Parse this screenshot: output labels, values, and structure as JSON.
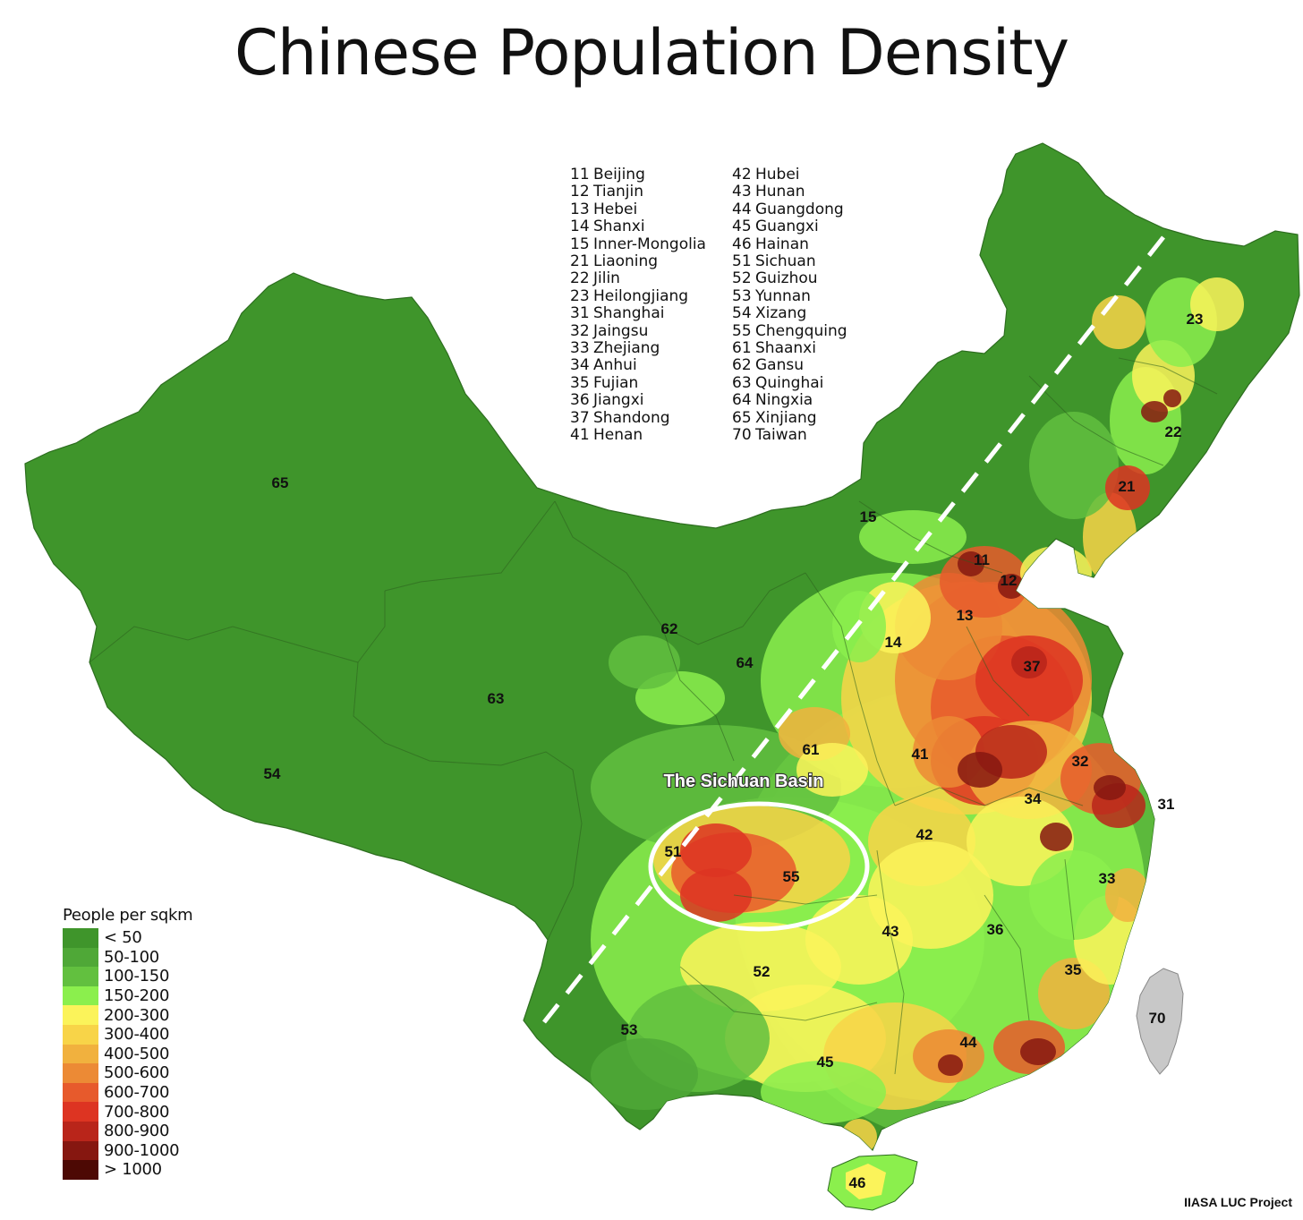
{
  "title": "Chinese Population Density",
  "province_key": {
    "left": [
      {
        "code": "11",
        "name": "Beijing"
      },
      {
        "code": "12",
        "name": "Tianjin"
      },
      {
        "code": "13",
        "name": "Hebei"
      },
      {
        "code": "14",
        "name": "Shanxi"
      },
      {
        "code": "15",
        "name": "Inner-Mongolia"
      },
      {
        "code": "21",
        "name": "Liaoning"
      },
      {
        "code": "22",
        "name": "Jilin"
      },
      {
        "code": "23",
        "name": "Heilongjiang"
      },
      {
        "code": "31",
        "name": "Shanghai"
      },
      {
        "code": "32",
        "name": "Jaingsu"
      },
      {
        "code": "33",
        "name": "Zhejiang"
      },
      {
        "code": "34",
        "name": "Anhui"
      },
      {
        "code": "35",
        "name": "Fujian"
      },
      {
        "code": "36",
        "name": "Jiangxi"
      },
      {
        "code": "37",
        "name": "Shandong"
      },
      {
        "code": "41",
        "name": "Henan"
      }
    ],
    "right": [
      {
        "code": "42",
        "name": "Hubei"
      },
      {
        "code": "43",
        "name": "Hunan"
      },
      {
        "code": "44",
        "name": "Guangdong"
      },
      {
        "code": "45",
        "name": "Guangxi"
      },
      {
        "code": "46",
        "name": "Hainan"
      },
      {
        "code": "51",
        "name": "Sichuan"
      },
      {
        "code": "52",
        "name": "Guizhou"
      },
      {
        "code": "53",
        "name": "Yunnan"
      },
      {
        "code": "54",
        "name": "Xizang"
      },
      {
        "code": "55",
        "name": "Chengquing"
      },
      {
        "code": "61",
        "name": "Shaanxi"
      },
      {
        "code": "62",
        "name": "Gansu"
      },
      {
        "code": "63",
        "name": "Quinghai"
      },
      {
        "code": "64",
        "name": "Ningxia"
      },
      {
        "code": "65",
        "name": "Xinjiang"
      },
      {
        "code": "70",
        "name": "Taiwan"
      }
    ]
  },
  "map_labels": [
    "65",
    "15",
    "23",
    "22",
    "21",
    "11",
    "12",
    "13",
    "14",
    "37",
    "62",
    "64",
    "63",
    "61",
    "41",
    "32",
    "31",
    "34",
    "54",
    "51",
    "55",
    "42",
    "33",
    "43",
    "36",
    "52",
    "35",
    "70",
    "53",
    "44",
    "45",
    "46"
  ],
  "annotation": {
    "label": "The Sichuan Basin"
  },
  "legend": {
    "title": "People per sqkm",
    "items": [
      {
        "label": "< 50",
        "color": "#3f952b"
      },
      {
        "label": "50-100",
        "color": "#4fa837"
      },
      {
        "label": "100-150",
        "color": "#62c03f"
      },
      {
        "label": "150-200",
        "color": "#8bef4d"
      },
      {
        "label": "200-300",
        "color": "#fbf35a"
      },
      {
        "label": "300-400",
        "color": "#f8d448"
      },
      {
        "label": "400-500",
        "color": "#f1b13e"
      },
      {
        "label": "500-600",
        "color": "#ec8a35"
      },
      {
        "label": "600-700",
        "color": "#e75a2c"
      },
      {
        "label": "700-800",
        "color": "#dd3422"
      },
      {
        "label": "800-900",
        "color": "#b9251a"
      },
      {
        "label": "900-1000",
        "color": "#861710"
      },
      {
        "label": "> 1000",
        "color": "#4d0904"
      }
    ]
  },
  "taiwan_color": "#c8c8c8",
  "credit": "IIASA LUC Project"
}
